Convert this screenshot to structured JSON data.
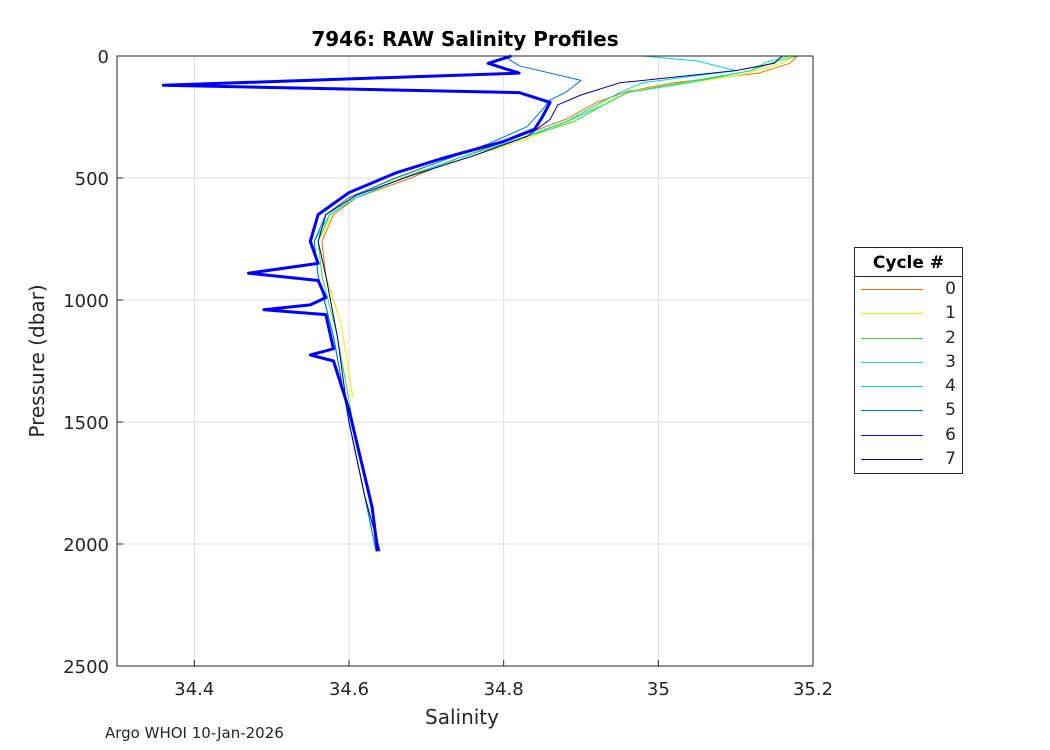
{
  "chart_data": {
    "type": "line",
    "title": "7946: RAW Salinity Profiles",
    "xlabel": "Salinity",
    "ylabel": "Pressure (dbar)",
    "xlim": [
      34.3,
      35.2
    ],
    "ylim": [
      0,
      2500
    ],
    "y_reversed": true,
    "grid": true,
    "xticks": [
      34.4,
      34.6,
      34.8,
      35,
      35.2
    ],
    "xtick_labels": [
      "34.4",
      "34.6",
      "34.8",
      "35",
      "35.2"
    ],
    "yticks": [
      0,
      500,
      1000,
      1500,
      2000,
      2500
    ],
    "ytick_labels": [
      "0",
      "500",
      "1000",
      "1500",
      "2000",
      "2500"
    ],
    "legend_title": "Cycle #",
    "legend_position": "right",
    "series": [
      {
        "name": "0",
        "color": "#e07800",
        "salinity": [
          35.18,
          35.17,
          35.13,
          35.02,
          34.96,
          34.92,
          34.88,
          34.82,
          34.74,
          34.68,
          34.61,
          34.58,
          34.565,
          34.57,
          34.585
        ],
        "pressure": [
          0,
          30,
          70,
          110,
          145,
          190,
          260,
          330,
          420,
          500,
          580,
          650,
          760,
          900,
          1050
        ]
      },
      {
        "name": "1",
        "color": "#f0f000",
        "salinity": [
          35.175,
          35.16,
          35.11,
          35.04,
          34.97,
          34.93,
          34.89,
          34.83,
          34.75,
          34.68,
          34.615,
          34.58,
          34.56,
          34.57,
          34.59,
          34.605
        ],
        "pressure": [
          0,
          30,
          75,
          110,
          140,
          190,
          260,
          340,
          420,
          480,
          560,
          640,
          760,
          900,
          1100,
          1400
        ]
      },
      {
        "name": "2",
        "color": "#40d840",
        "salinity": [
          35.18,
          35.15,
          35.12,
          35.03,
          34.96,
          34.93,
          34.89,
          34.82,
          34.74,
          34.67,
          34.61,
          34.575,
          34.56,
          34.565,
          34.585,
          34.605,
          34.625,
          34.64
        ],
        "pressure": [
          0,
          25,
          60,
          110,
          150,
          200,
          270,
          340,
          420,
          500,
          580,
          650,
          760,
          900,
          1150,
          1500,
          1800,
          2030
        ]
      },
      {
        "name": "3",
        "color": "#20e0a0",
        "salinity": [
          35.17,
          35.14,
          35.12,
          35.04,
          34.96,
          34.93,
          34.88,
          34.82,
          34.74,
          34.67,
          34.61,
          34.575,
          34.555,
          34.56,
          34.58,
          34.6,
          34.62,
          34.64
        ],
        "pressure": [
          0,
          25,
          60,
          110,
          150,
          200,
          270,
          340,
          420,
          500,
          580,
          650,
          760,
          900,
          1150,
          1500,
          1800,
          2030
        ]
      },
      {
        "name": "4",
        "color": "#00d8d8",
        "salinity": [
          34.98,
          35.05,
          35.1,
          34.98,
          34.95,
          34.92,
          34.88,
          34.82,
          34.74,
          34.67,
          34.61,
          34.575,
          34.555,
          34.56,
          34.58,
          34.6,
          34.62,
          34.635
        ],
        "pressure": [
          0,
          20,
          60,
          110,
          150,
          200,
          270,
          340,
          420,
          500,
          580,
          650,
          760,
          900,
          1150,
          1500,
          1800,
          2030
        ]
      },
      {
        "name": "5",
        "color": "#0070e0",
        "salinity": [
          34.8,
          34.82,
          34.9,
          34.88,
          34.86,
          34.85,
          34.83,
          34.78,
          34.72,
          34.66,
          34.6,
          34.57,
          34.555,
          34.56,
          34.58,
          34.6,
          34.62,
          34.635
        ],
        "pressure": [
          0,
          40,
          100,
          150,
          180,
          220,
          290,
          360,
          430,
          500,
          580,
          650,
          760,
          900,
          1150,
          1500,
          1800,
          2030
        ]
      },
      {
        "name": "6",
        "color": "#0000ff",
        "salinity": [
          34.81,
          34.78,
          34.82,
          34.36,
          34.82,
          34.86,
          34.85,
          34.84,
          34.8,
          34.72,
          34.66,
          34.6,
          34.56,
          34.55,
          34.56,
          34.47,
          34.56,
          34.57,
          34.55,
          34.49,
          34.57,
          34.58,
          34.55,
          34.58,
          34.6,
          34.615,
          34.63,
          34.637
        ],
        "pressure": [
          0,
          30,
          70,
          120,
          150,
          190,
          250,
          300,
          350,
          420,
          480,
          560,
          650,
          760,
          850,
          890,
          920,
          990,
          1020,
          1040,
          1060,
          1200,
          1225,
          1250,
          1450,
          1650,
          1850,
          2030
        ]
      },
      {
        "name": "7",
        "color": "#000090",
        "salinity": [
          35.16,
          35.15,
          35.1,
          34.95,
          34.9,
          34.87,
          34.86,
          34.83,
          34.76,
          34.68,
          34.61,
          34.57,
          34.56,
          34.57,
          34.585,
          34.6,
          34.62,
          34.64
        ],
        "pressure": [
          0,
          30,
          60,
          110,
          160,
          200,
          260,
          330,
          410,
          490,
          570,
          650,
          760,
          900,
          1150,
          1500,
          1800,
          2030
        ]
      }
    ]
  },
  "footer": "Argo WHOI 10-Jan-2026"
}
